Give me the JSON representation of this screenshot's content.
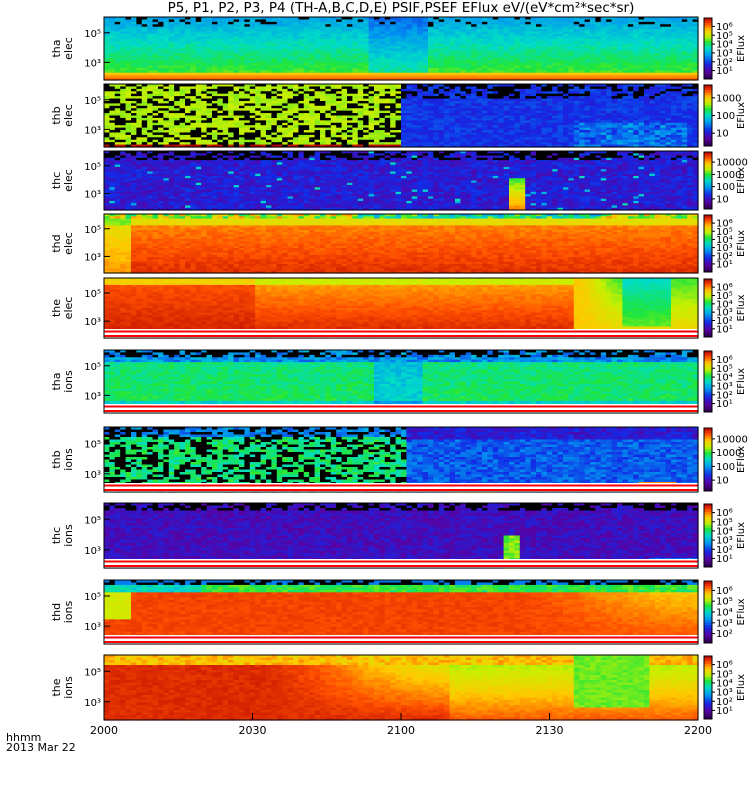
{
  "title": "P5, P1, P2, P3, P4 (TH-A,B,C,D,E) PSIF,PSEF EFlux eV/(eV*cm²*sec*sr)",
  "x_label_1": "hhmm",
  "x_label_2": "2013 Mar 22",
  "chart_data": {
    "type": "heatmap",
    "title": "P5, P1, P2, P3, P4 (TH-A,B,C,D,E) PSIF,PSEF EFlux eV/(eV*cm²*sec*sr)",
    "x_ticks": [
      "2000",
      "2030",
      "2100",
      "2130",
      "2200"
    ],
    "x_tick_minutes": [
      0,
      30,
      60,
      90,
      120
    ],
    "x_range": [
      "2000",
      "2200"
    ],
    "colormap": "rainbow (purple-blue-cyan-green-yellow-orange-red)",
    "panels": [
      {
        "label_1": "tha",
        "label_2": "elec",
        "y_ticks": [
          "10⁵",
          "10³"
        ],
        "cb_label": "EFlux",
        "cb_ticks": [
          "10⁶",
          "10⁵",
          "10⁴",
          "10³",
          "10²",
          "10¹"
        ]
      },
      {
        "label_1": "thb",
        "label_2": "elec",
        "y_ticks": [
          "10⁵",
          "10³"
        ],
        "cb_label": "EFlux",
        "cb_ticks": [
          "1000",
          "100",
          "10"
        ]
      },
      {
        "label_1": "thc",
        "label_2": "elec",
        "y_ticks": [
          "10⁵",
          "10³"
        ],
        "cb_label": "EFlux",
        "cb_ticks": [
          "10000",
          "1000",
          "100",
          "10"
        ]
      },
      {
        "label_1": "thd",
        "label_2": "elec",
        "y_ticks": [
          "10⁵",
          "10³"
        ],
        "cb_label": "EFlux",
        "cb_ticks": [
          "10⁶",
          "10⁵",
          "10⁴",
          "10³",
          "10²",
          "10¹"
        ]
      },
      {
        "label_1": "the",
        "label_2": "elec",
        "y_ticks": [
          "10⁵",
          "10³"
        ],
        "cb_label": "EFlux",
        "cb_ticks": [
          "10⁶",
          "10⁵",
          "10⁴",
          "10³",
          "10²",
          "10¹"
        ]
      },
      {
        "label_1": "tha",
        "label_2": "ions",
        "y_ticks": [
          "10⁵",
          "10³"
        ],
        "cb_label": "EFlux",
        "cb_ticks": [
          "10⁶",
          "10⁵",
          "10⁴",
          "10³",
          "10²",
          "10¹"
        ]
      },
      {
        "label_1": "thb",
        "label_2": "ions",
        "y_ticks": [
          "10⁵",
          "10³"
        ],
        "cb_label": "EFlux",
        "cb_ticks": [
          "10000",
          "1000",
          "100",
          "10"
        ]
      },
      {
        "label_1": "thc",
        "label_2": "ions",
        "y_ticks": [
          "10⁵",
          "10³"
        ],
        "cb_label": "EFlux",
        "cb_ticks": [
          "10⁶",
          "10⁵",
          "10⁴",
          "10³",
          "10²",
          "10¹"
        ]
      },
      {
        "label_1": "thd",
        "label_2": "ions",
        "y_ticks": [
          "10⁵",
          "10³"
        ],
        "cb_label": "EFlux",
        "cb_ticks": [
          "10⁶",
          "10⁵",
          "10⁴",
          "10³",
          "10²"
        ]
      },
      {
        "label_1": "the",
        "label_2": "ions",
        "y_ticks": [
          "10⁵",
          "10³"
        ],
        "cb_label": "EFlux",
        "cb_ticks": [
          "10⁶",
          "10⁵",
          "10⁴",
          "10³",
          "10²",
          "10¹"
        ]
      }
    ]
  }
}
